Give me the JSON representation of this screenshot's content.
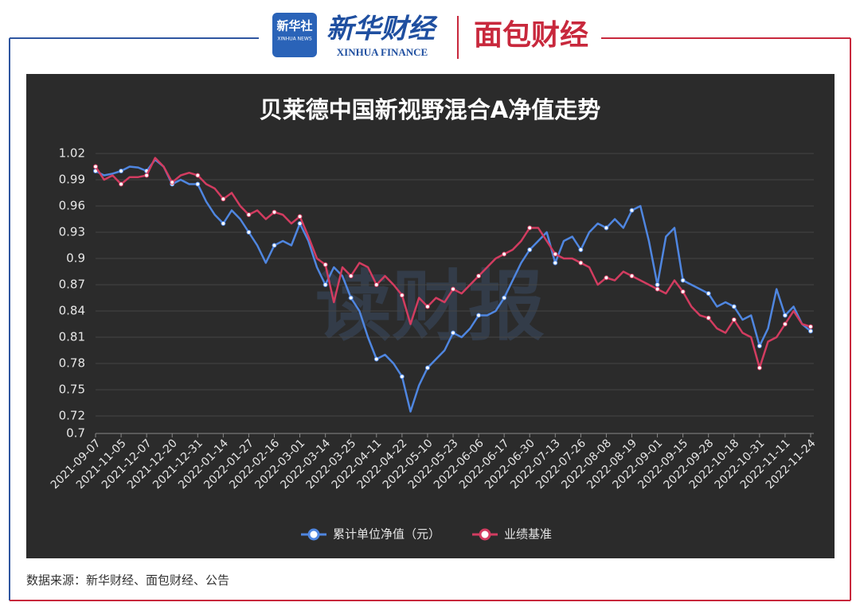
{
  "header": {
    "logo": "新华社",
    "logo_en": "XINHUA NEWS",
    "brand": "新华财经",
    "brand_en": "XINHUA FINANCE",
    "partner": "面包财经"
  },
  "chart_data": {
    "type": "line",
    "title": "贝莱德中国新视野混合A净值走势",
    "watermark": "读财报",
    "categories": [
      "2021-09-07",
      null,
      null,
      "2021-11-05",
      null,
      null,
      "2021-12-07",
      null,
      null,
      "2021-12-20",
      null,
      null,
      "2021-12-31",
      null,
      null,
      "2022-01-14",
      null,
      null,
      "2022-01-27",
      null,
      null,
      "2022-02-16",
      null,
      null,
      "2022-03-01",
      null,
      null,
      "2022-03-14",
      null,
      null,
      "2022-03-25",
      null,
      null,
      "2022-04-11",
      null,
      null,
      "2022-04-22",
      null,
      null,
      "2022-05-10",
      null,
      null,
      "2022-05-23",
      null,
      null,
      "2022-06-06",
      null,
      null,
      "2022-06-17",
      null,
      null,
      "2022-06-30",
      null,
      null,
      "2022-07-13",
      null,
      null,
      "2022-07-26",
      null,
      null,
      "2022-08-08",
      null,
      null,
      "2022-08-19",
      null,
      null,
      "2022-09-01",
      null,
      null,
      "2022-09-15",
      null,
      null,
      "2022-09-28",
      null,
      null,
      "2022-10-18",
      null,
      null,
      "2022-10-31",
      null,
      null,
      "2022-11-11",
      null,
      null,
      "2022-11-24"
    ],
    "series": [
      {
        "name": "累计单位净值（元）",
        "color": "#4f86e0",
        "values": [
          1.0,
          0.995,
          0.997,
          1.0,
          1.005,
          1.004,
          1.0,
          1.013,
          1.005,
          0.985,
          0.99,
          0.985,
          0.985,
          0.965,
          0.95,
          0.94,
          0.955,
          0.945,
          0.93,
          0.915,
          0.895,
          0.915,
          0.92,
          0.915,
          0.94,
          0.92,
          0.89,
          0.87,
          0.89,
          0.88,
          0.855,
          0.84,
          0.81,
          0.785,
          0.79,
          0.78,
          0.765,
          0.725,
          0.755,
          0.775,
          0.785,
          0.795,
          0.815,
          0.81,
          0.82,
          0.835,
          0.835,
          0.84,
          0.855,
          0.875,
          0.895,
          0.91,
          0.92,
          0.93,
          0.895,
          0.92,
          0.925,
          0.91,
          0.93,
          0.94,
          0.935,
          0.945,
          0.935,
          0.955,
          0.96,
          0.92,
          0.87,
          0.925,
          0.935,
          0.875,
          0.87,
          0.865,
          0.86,
          0.845,
          0.85,
          0.845,
          0.83,
          0.835,
          0.8,
          0.82,
          0.865,
          0.835,
          0.845,
          0.825,
          0.817
        ]
      },
      {
        "name": "业绩基准",
        "color": "#d23c60",
        "values": [
          1.005,
          0.99,
          0.995,
          0.985,
          0.993,
          0.993,
          0.995,
          1.015,
          1.005,
          0.987,
          0.995,
          0.998,
          0.995,
          0.985,
          0.98,
          0.968,
          0.975,
          0.96,
          0.95,
          0.955,
          0.945,
          0.953,
          0.95,
          0.94,
          0.948,
          0.925,
          0.9,
          0.893,
          0.85,
          0.89,
          0.88,
          0.895,
          0.89,
          0.87,
          0.88,
          0.87,
          0.858,
          0.825,
          0.855,
          0.845,
          0.855,
          0.85,
          0.865,
          0.86,
          0.87,
          0.88,
          0.89,
          0.9,
          0.905,
          0.91,
          0.92,
          0.935,
          0.935,
          0.92,
          0.905,
          0.9,
          0.9,
          0.895,
          0.89,
          0.87,
          0.878,
          0.875,
          0.885,
          0.88,
          0.875,
          0.87,
          0.865,
          0.86,
          0.875,
          0.862,
          0.845,
          0.835,
          0.832,
          0.82,
          0.815,
          0.83,
          0.815,
          0.81,
          0.775,
          0.805,
          0.81,
          0.825,
          0.84,
          0.825,
          0.822
        ]
      }
    ],
    "ylim": [
      0.7,
      1.02
    ],
    "yticks": [
      0.7,
      0.72,
      0.75,
      0.78,
      0.81,
      0.84,
      0.87,
      0.9,
      0.93,
      0.96,
      0.99,
      1.02
    ],
    "grid": true,
    "legend": "bottom"
  },
  "footer": {
    "source": "数据来源：新华财经、面包财经、公告"
  }
}
